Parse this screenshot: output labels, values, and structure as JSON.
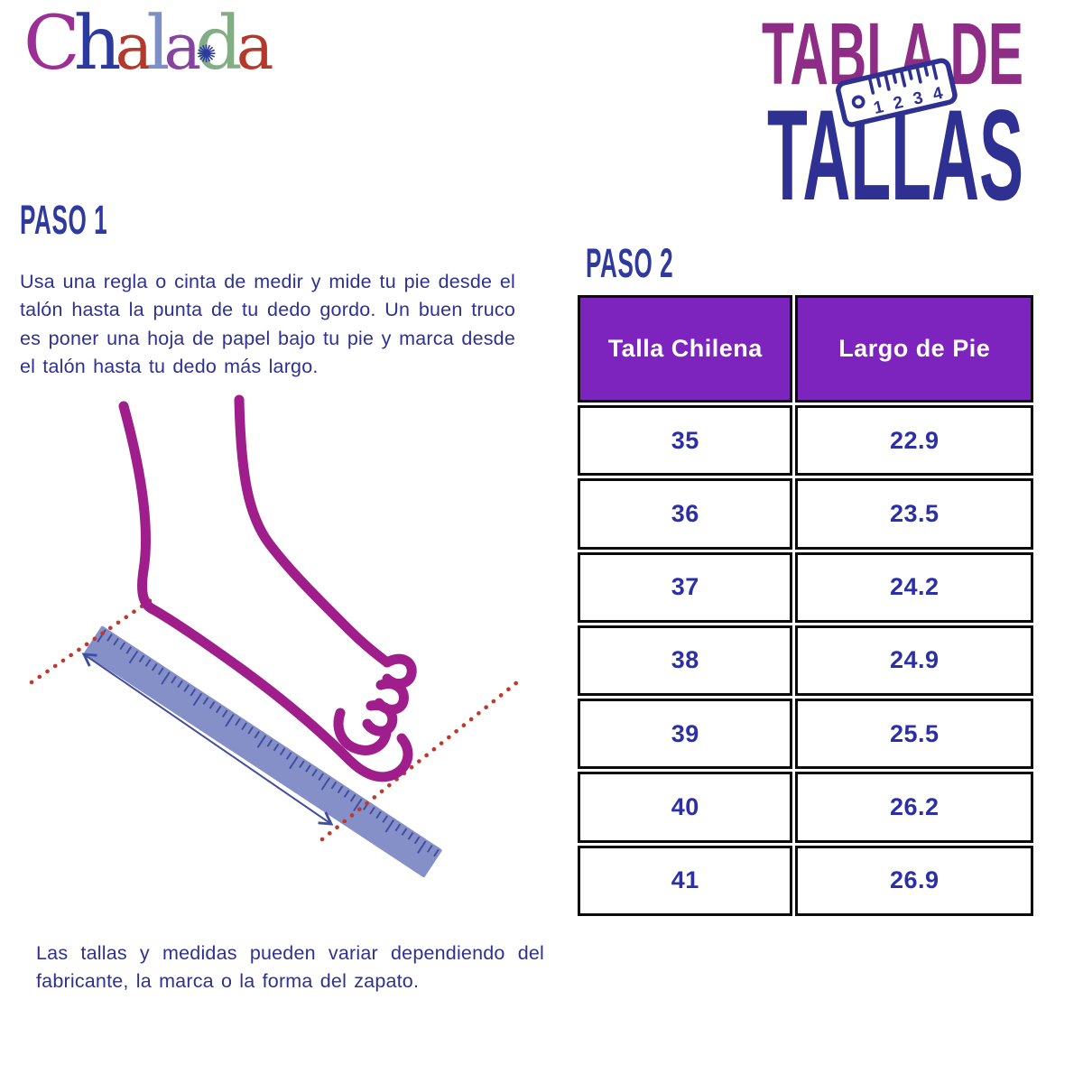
{
  "page": {
    "background": "#ffffff",
    "text_color": "#2e3192"
  },
  "logo": {
    "text": "Chalada",
    "ornament_glyph": "✺",
    "ornament_color": "#2c3a9e",
    "letters": [
      {
        "ch": "C",
        "color": "#9c2f96"
      },
      {
        "ch": "h",
        "color": "#2c3a9e"
      },
      {
        "ch": "a",
        "color": "#b5382d"
      },
      {
        "ch": "l",
        "color": "#7d8fc5"
      },
      {
        "ch": "a",
        "color": "#8743a0"
      },
      {
        "ch": "d",
        "color": "#83ad85"
      },
      {
        "ch": "a",
        "color": "#b5382d"
      }
    ]
  },
  "title": {
    "line1": "TABLA DE",
    "line1_color": "#8e2d86",
    "line2": "TALLAS",
    "line2_color": "#2e3192",
    "ruler_icon_numbers": "1 2 3 4",
    "ruler_icon_color": "#2e3192"
  },
  "step1": {
    "heading": "PASO 1",
    "heading_color": "#2e3a9e",
    "body": "Usa una regla o cinta de medir y mide tu pie desde el talón hasta la punta de tu dedo gordo. Un buen truco es poner una hoja de papel bajo tu pie y marca desde el talón hasta tu dedo más largo."
  },
  "step2": {
    "heading": "PASO 2",
    "heading_color": "#2e3a9e"
  },
  "note": "Las tallas y medidas pueden variar dependiendo del fabricante, la marca o la forma del zapato.",
  "size_table": {
    "header_bg": "#7c24bd",
    "header_text_color": "#ffffff",
    "value_color": "#2b2fa8",
    "columns": [
      "Talla Chilena",
      "Largo de Pie"
    ],
    "rows": [
      {
        "talla": "35",
        "largo": "22.9"
      },
      {
        "talla": "36",
        "largo": "23.5"
      },
      {
        "talla": "37",
        "largo": "24.2"
      },
      {
        "talla": "38",
        "largo": "24.9"
      },
      {
        "talla": "39",
        "largo": "25.5"
      },
      {
        "talla": "40",
        "largo": "26.2"
      },
      {
        "talla": "41",
        "largo": "26.9"
      }
    ]
  },
  "illustration": {
    "foot_color": "#a01e8c",
    "ruler_color": "#8590c9",
    "tick_color": "#414da0",
    "guide_color": "#c0392b",
    "arrow_color": "#414da0"
  }
}
